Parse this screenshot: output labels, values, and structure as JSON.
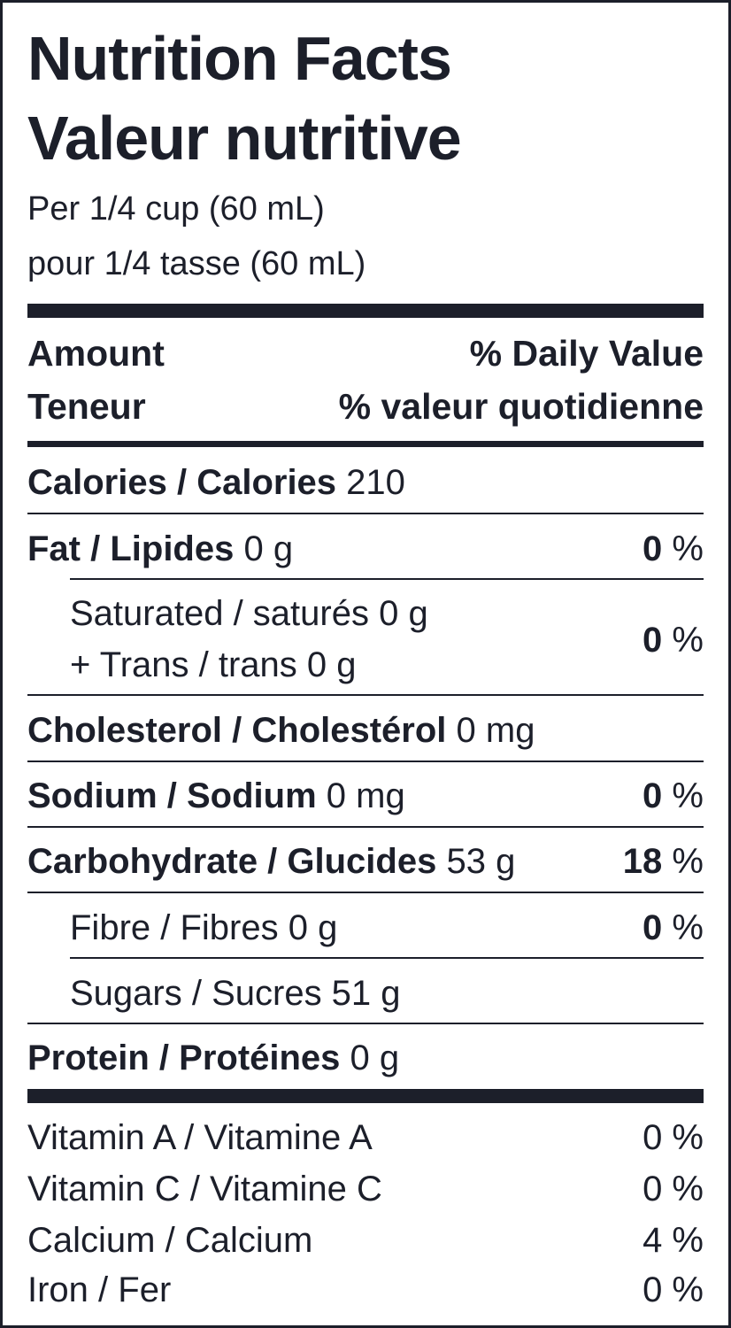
{
  "title_en": "Nutrition Facts",
  "title_fr": "Valeur nutritive",
  "serving_en": "Per 1/4 cup (60 mL)",
  "serving_fr": "pour 1/4 tasse (60 mL)",
  "header": {
    "amount_en": "Amount",
    "amount_fr": "Teneur",
    "dv_en": "% Daily Value",
    "dv_fr": "% valeur quotidienne"
  },
  "nutrients": {
    "calories": {
      "label": "Calories / Calories",
      "amount": "210"
    },
    "fat": {
      "label": "Fat / Lipides",
      "amount": "0 g",
      "dv": "0",
      "unit": "%"
    },
    "saturated": {
      "label": "Saturated / saturés 0 g"
    },
    "trans": {
      "label": "+ Trans / trans 0 g",
      "dv": "0",
      "unit": "%"
    },
    "cholesterol": {
      "label": "Cholesterol / Cholestérol",
      "amount": "0 mg"
    },
    "sodium": {
      "label": "Sodium / Sodium",
      "amount": "0 mg",
      "dv": "0",
      "unit": "%"
    },
    "carbohydrate": {
      "label": "Carbohydrate / Glucides",
      "amount": "53 g",
      "dv": "18",
      "unit": "%"
    },
    "fibre": {
      "label": "Fibre / Fibres 0 g",
      "dv": "0",
      "unit": "%"
    },
    "sugars": {
      "label": "Sugars / Sucres 51 g"
    },
    "protein": {
      "label": "Protein / Protéines",
      "amount": "0 g"
    }
  },
  "vitamins": [
    {
      "label": "Vitamin A / Vitamine A",
      "dv": "0 %"
    },
    {
      "label": "Vitamin C / Vitamine C",
      "dv": "0 %"
    },
    {
      "label": "Calcium / Calcium",
      "dv": "4 %"
    },
    {
      "label": "Iron / Fer",
      "dv": "0 %"
    }
  ]
}
